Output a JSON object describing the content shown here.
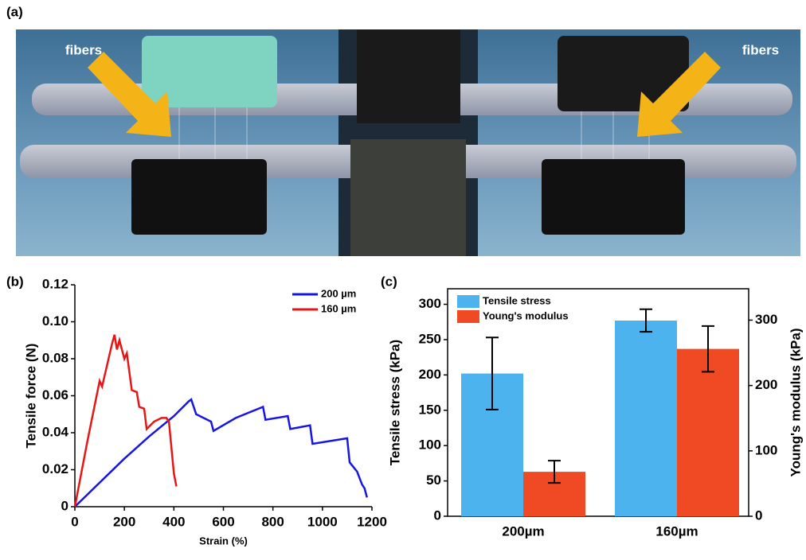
{
  "photo": {
    "panel_label": "(a)",
    "annotations": [
      "fibers",
      "fibers"
    ]
  },
  "chart_data": [
    {
      "type": "line",
      "panel_label": "(b)",
      "x_label": "Strain (%)",
      "y_label": "Tensile force (N)",
      "xlim": [
        0,
        1200
      ],
      "xticks": [
        0,
        200,
        400,
        600,
        800,
        1000,
        1200
      ],
      "ylim": [
        0,
        0.12
      ],
      "yticks": [
        0,
        0.02,
        0.04,
        0.06,
        0.08,
        {
          "value": 0.1,
          "label": "0.10"
        },
        0.12
      ],
      "legend": "upper right",
      "series": [
        {
          "name": "200 µm",
          "color": "#1515e8",
          "x": [
            0,
            100,
            200,
            300,
            400,
            460,
            470,
            490,
            520,
            550,
            560,
            650,
            760,
            770,
            860,
            870,
            950,
            960,
            1100,
            1110,
            1140,
            1160,
            1170,
            1180
          ],
          "values": [
            0,
            0.013,
            0.026,
            0.038,
            0.049,
            0.057,
            0.058,
            0.05,
            0.048,
            0.046,
            0.041,
            0.048,
            0.054,
            0.047,
            0.049,
            0.042,
            0.044,
            0.034,
            0.037,
            0.024,
            0.019,
            0.012,
            0.01,
            0.005
          ]
        },
        {
          "name": "160 µm",
          "color": "#e81515",
          "x": [
            0,
            50,
            100,
            110,
            150,
            160,
            170,
            180,
            200,
            210,
            230,
            250,
            260,
            280,
            290,
            320,
            350,
            370,
            380,
            400,
            410
          ],
          "values": [
            0,
            0.035,
            0.068,
            0.065,
            0.088,
            0.093,
            0.085,
            0.09,
            0.08,
            0.083,
            0.063,
            0.062,
            0.054,
            0.053,
            0.042,
            0.046,
            0.048,
            0.048,
            0.046,
            0.018,
            0.011
          ]
        }
      ]
    },
    {
      "type": "bar",
      "panel_label": "(c)",
      "y_label": "Tensile stress (kPa)",
      "y2_label": "Young's modulus (kPa)",
      "categories": [
        "200µm",
        "160µm"
      ],
      "ylim": [
        0,
        322
      ],
      "yticks": [
        0,
        50,
        100,
        150,
        200,
        250,
        300
      ],
      "y2lim": [
        0,
        348
      ],
      "y2ticks": [
        0,
        100,
        200,
        300
      ],
      "legend": "upper left",
      "series": [
        {
          "name": "Tensile stress",
          "color": "#4db3ef",
          "values": [
            202,
            277
          ],
          "errors": [
            51,
            16
          ]
        },
        {
          "name": "Young's modulus",
          "color": "#ef4a23",
          "axis": "y2",
          "values": [
            68,
            256
          ],
          "errors": [
            17,
            35
          ]
        }
      ]
    }
  ]
}
